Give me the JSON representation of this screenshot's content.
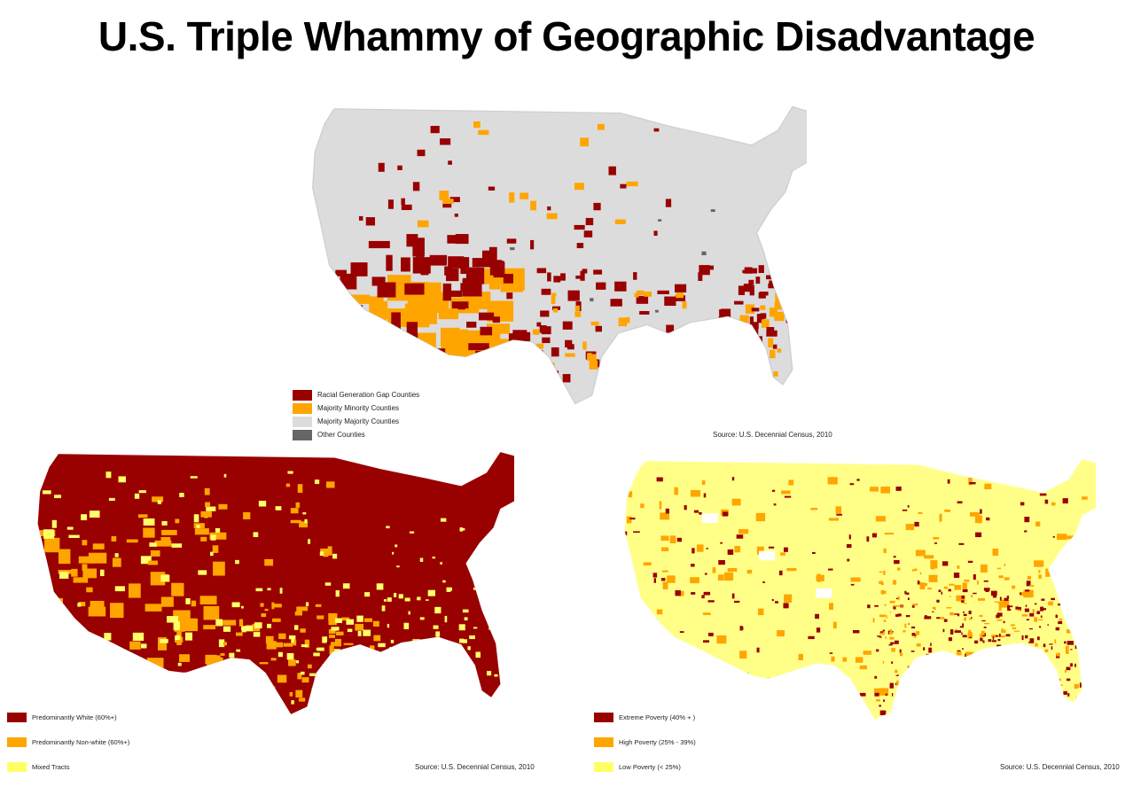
{
  "title": "U.S. Triple Whammy of Geographic Disadvantage",
  "maps": [
    {
      "source": "Source: U.S. Decennial Census, 2010",
      "base_color": "#dcdcdc",
      "legend": [
        {
          "label": "Racial Generation Gap Counties",
          "color": "#990000"
        },
        {
          "label": "Majority Minority Counties",
          "color": "#ffa500"
        },
        {
          "label": "Majority Majority Counties",
          "color": "#dcdcdc"
        },
        {
          "label": "Other Counties",
          "color": "#666666"
        }
      ]
    },
    {
      "source": "Source: U.S. Decennial Census, 2010",
      "base_color": "#990000",
      "legend": [
        {
          "label": "Predominantly White (60%+)",
          "color": "#990000"
        },
        {
          "label": "Predominantly Non-white (60%+)",
          "color": "#ffa500"
        },
        {
          "label": "Mixed Tracts",
          "color": "#ffff66"
        }
      ]
    },
    {
      "source": "Source: U.S. Decennial Census, 2010",
      "base_color": "#ffff88",
      "legend": [
        {
          "label": "Extreme Poverty (40% + )",
          "color": "#990000"
        },
        {
          "label": "High Poverty (25% - 39%)",
          "color": "#ffa500"
        },
        {
          "label": "Low Poverty (< 25%)",
          "color": "#ffff66"
        }
      ]
    }
  ]
}
